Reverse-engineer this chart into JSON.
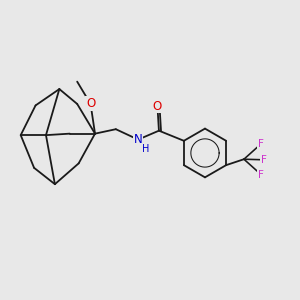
{
  "bg_color": "#e8e8e8",
  "bond_color": "#1a1a1a",
  "bond_lw": 1.3,
  "atom_colors": {
    "O": "#dd0000",
    "N": "#0000cc",
    "F": "#cc33cc",
    "C": "#1a1a1a"
  },
  "font_size": 8.0
}
